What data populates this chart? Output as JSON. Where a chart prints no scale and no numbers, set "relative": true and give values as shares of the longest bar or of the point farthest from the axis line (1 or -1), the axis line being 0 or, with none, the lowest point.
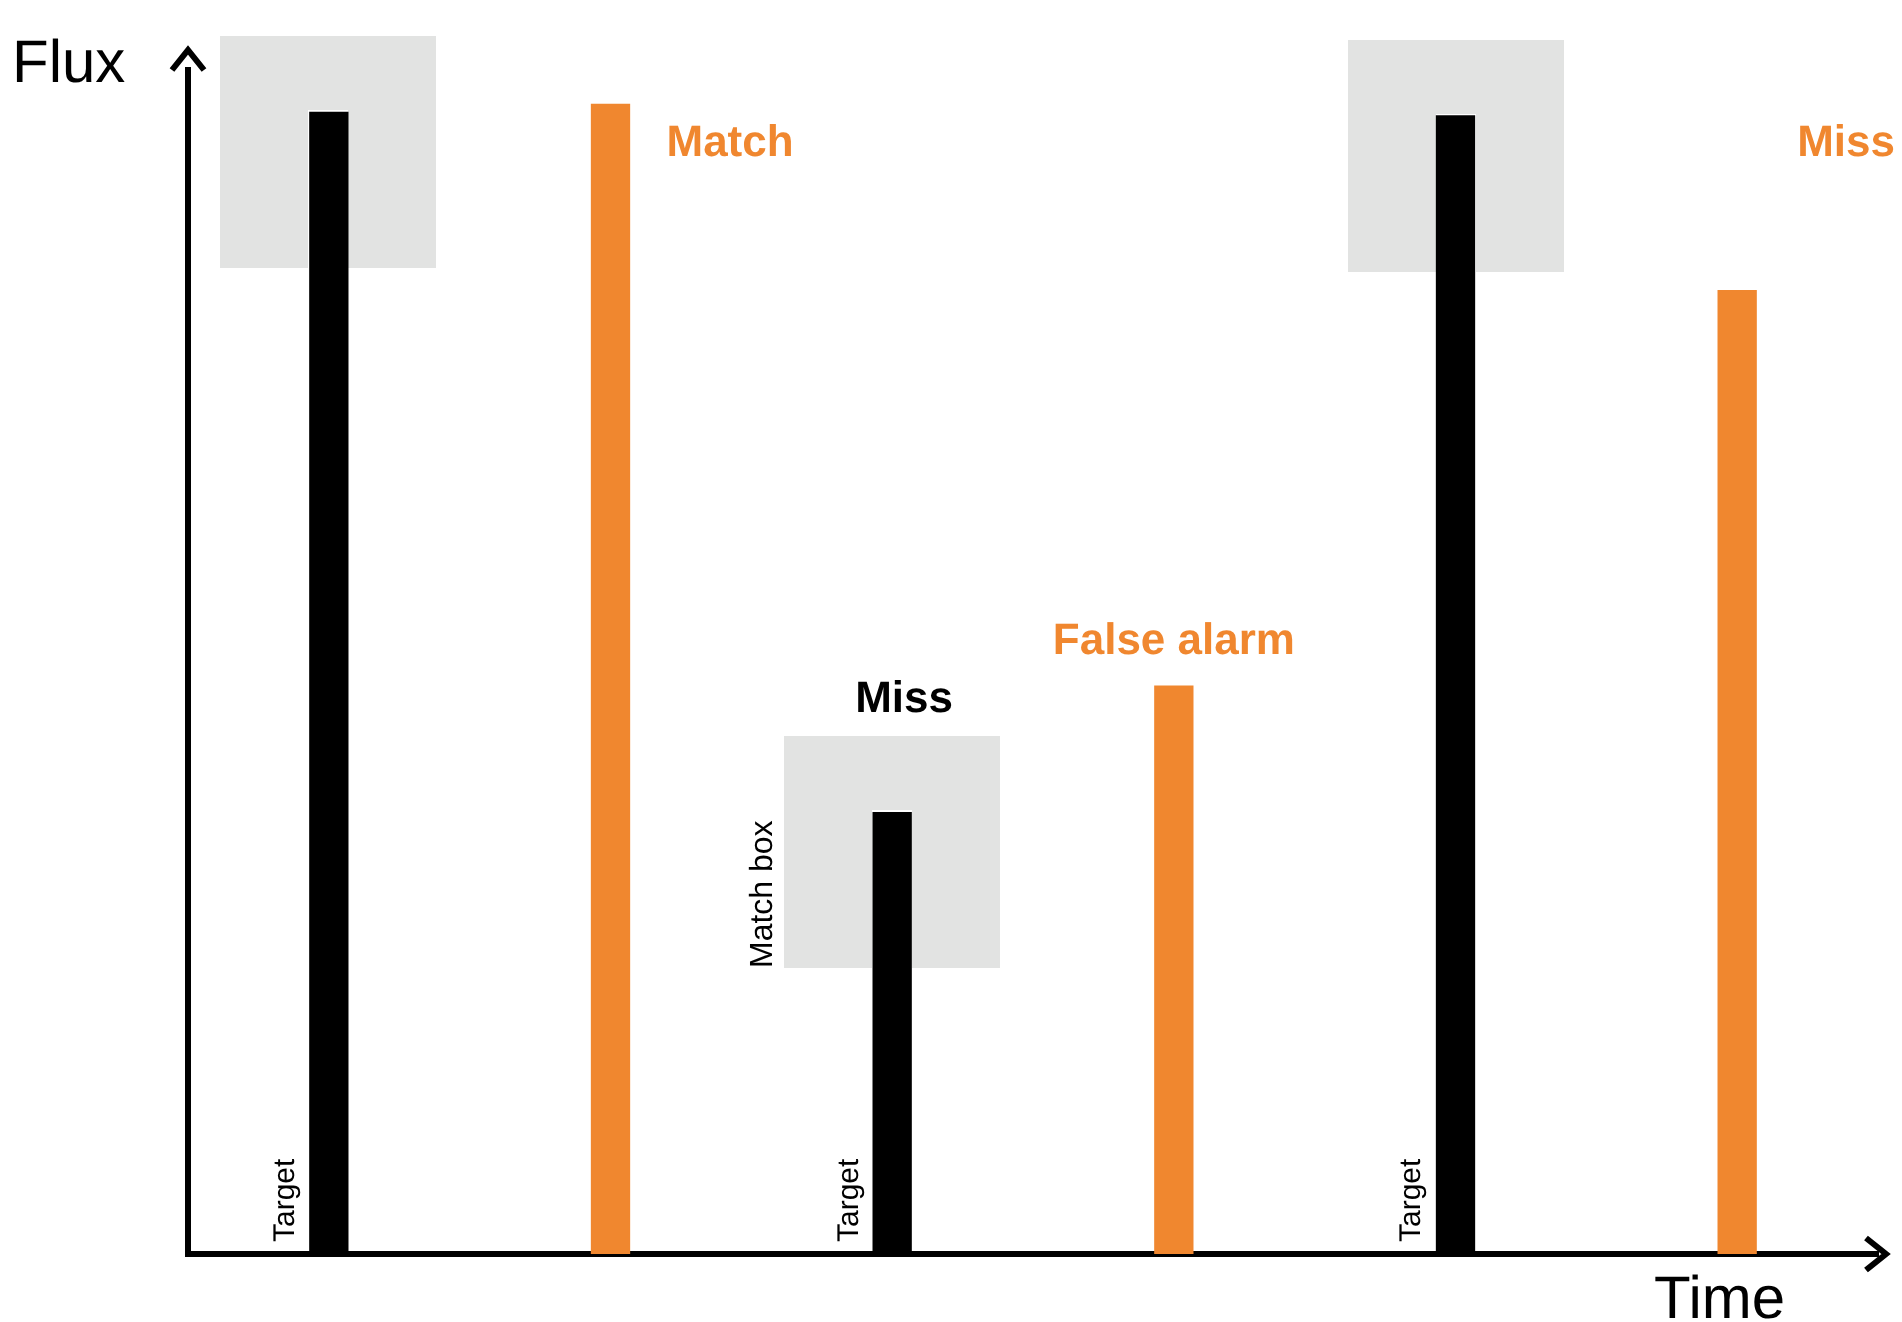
{
  "chart_data": {
    "type": "bar",
    "relative": true,
    "xlabel": "Time",
    "ylabel": "Flux",
    "categories": [
      null,
      null,
      null,
      null,
      null,
      null
    ],
    "values": [
      0.993,
      1,
      0.384,
      0.494,
      0.99,
      0.838
    ],
    "colors": [
      "#000000",
      "#f0872f",
      "#000000",
      "#f0872f",
      "#000000",
      "#f0872f"
    ],
    "annotations": [
      "Match",
      "Miss",
      "False alarm",
      "Miss",
      "Match box",
      "Target",
      "Target",
      "Target"
    ],
    "grid": false,
    "legend": false,
    "tick_labels": false
  }
}
